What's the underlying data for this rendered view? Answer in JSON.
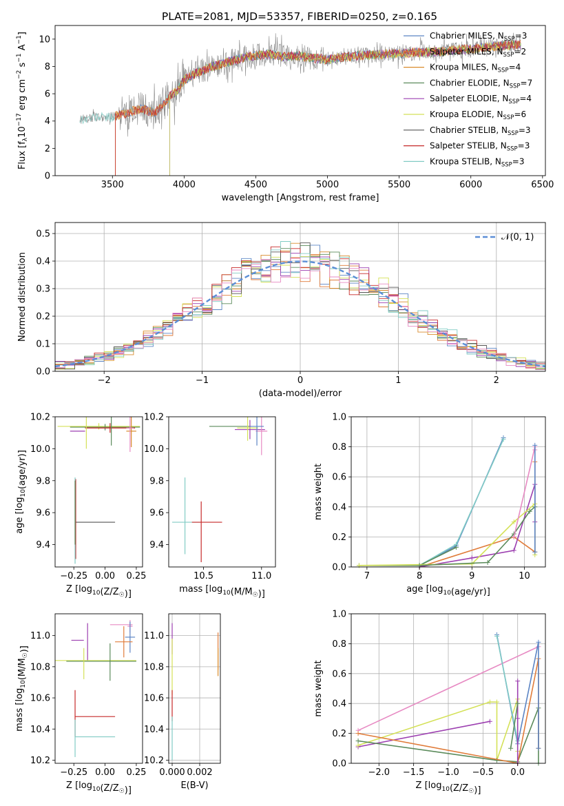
{
  "figure_title": "PLATE=2081, MJD=53357, FIBERID=0250, z=0.165",
  "colors": {
    "chabrier_miles": "#5b84c4",
    "salpeter_miles": "#e07b39",
    "kroupa_miles": "#d98b2b",
    "chabrier_elodie": "#5a8a5a",
    "salpeter_elodie": "#9c3fb0",
    "kroupa_elodie": "#d4e157",
    "chabrier_stelib": "#555555",
    "salpeter_stelib": "#c62828",
    "kroupa_stelib": "#80cbc4",
    "data": "#888888",
    "pink": "#e78ac3",
    "gaussian": "#5b8ed6"
  },
  "chart_data": [
    {
      "id": "spectrum",
      "type": "line",
      "title": "PLATE=2081, MJD=53357, FIBERID=0250, z=0.165",
      "xlabel": "wavelength [Angstrom, rest frame]",
      "ylabel_parts": [
        "Flux [f",
        "λ",
        "10",
        "−17",
        " erg cm",
        "−2",
        " s",
        "−1",
        " A",
        "−1",
        "]"
      ],
      "xlim": [
        3100,
        6520
      ],
      "ylim": [
        0,
        11
      ],
      "xticks": [
        3500,
        4000,
        4500,
        5000,
        5500,
        6000,
        6500
      ],
      "yticks": [
        0,
        2,
        4,
        6,
        8,
        10
      ],
      "continuum": {
        "x": [
          3270,
          3400,
          3500,
          3600,
          3700,
          3800,
          3900,
          3950,
          4000,
          4100,
          4200,
          4300,
          4400,
          4500,
          4600,
          4700,
          4800,
          4900,
          5000,
          5200,
          5400,
          5600,
          5800,
          6000,
          6200,
          6350
        ],
        "y": [
          4.1,
          4.3,
          4.3,
          4.6,
          4.9,
          4.6,
          5.8,
          6.2,
          7.0,
          7.6,
          8.0,
          8.3,
          8.6,
          8.8,
          8.9,
          8.7,
          8.8,
          8.6,
          8.5,
          8.8,
          8.9,
          9.0,
          9.1,
          9.3,
          9.5,
          9.6
        ]
      },
      "legend": [
        {
          "label": "Chabrier MILES, N",
          "sub": "SSP",
          "n": "=3",
          "color_key": "chabrier_miles"
        },
        {
          "label": "Salpeter MILES, N",
          "sub": "SSP",
          "n": "=2",
          "color_key": "salpeter_miles"
        },
        {
          "label": "Kroupa MILES, N",
          "sub": "SSP",
          "n": "=4",
          "color_key": "kroupa_miles"
        },
        {
          "label": "Chabrier ELODIE, N",
          "sub": "SSP",
          "n": "=7",
          "color_key": "chabrier_elodie"
        },
        {
          "label": "Salpeter ELODIE, N",
          "sub": "SSP",
          "n": "=4",
          "color_key": "salpeter_elodie"
        },
        {
          "label": "Kroupa ELODIE, N",
          "sub": "SSP",
          "n": "=6",
          "color_key": "kroupa_elodie"
        },
        {
          "label": "Chabrier STELIB, N",
          "sub": "SSP",
          "n": "=3",
          "color_key": "chabrier_stelib"
        },
        {
          "label": "Salpeter STELIB, N",
          "sub": "SSP",
          "n": "=3",
          "color_key": "salpeter_stelib"
        },
        {
          "label": "Kroupa STELIB, N",
          "sub": "SSP",
          "n": "=3",
          "color_key": "kroupa_stelib"
        }
      ]
    },
    {
      "id": "residuals",
      "type": "histogram",
      "xlabel": "(data-model)/error",
      "ylabel": "Normed distribution",
      "xlim": [
        -2.5,
        2.5
      ],
      "ylim": [
        0,
        0.54
      ],
      "xticks": [
        -2,
        -1,
        0,
        1,
        2
      ],
      "yticks": [
        0.0,
        0.1,
        0.2,
        0.3,
        0.4,
        0.5
      ],
      "grid": true,
      "bin_width": 0.1,
      "legend": {
        "label": "𝒩(0, 1)",
        "position": "top-right"
      }
    },
    {
      "id": "age_vs_Z",
      "type": "scatter",
      "xlabel": "Z [log10(Z/Z☉)]",
      "ylabel": "age  [log10(age/yr)]",
      "xlim": [
        -0.4,
        0.3
      ],
      "ylim": [
        9.26,
        10.2
      ],
      "xticks": [
        -0.25,
        0.0,
        0.25
      ],
      "xtick_labels": [
        "−0.25",
        "0.00",
        "0.25"
      ],
      "yticks": [
        9.4,
        9.6,
        9.8,
        10.0,
        10.2
      ],
      "points": [
        {
          "x": -0.05,
          "y": 10.14,
          "xerr": 0.33,
          "yerr": 0.02,
          "color_key": "kroupa_elodie"
        },
        {
          "x": 0.0,
          "y": 10.135,
          "xerr": 0.28,
          "yerr": 0.02,
          "color_key": "chabrier_elodie"
        },
        {
          "x": 0.04,
          "y": 10.13,
          "xerr": 0.2,
          "yerr": 0.03,
          "color_key": "salpeter_stelib"
        },
        {
          "x": -0.22,
          "y": 10.11,
          "xerr": 0.06,
          "yerr": 0.0,
          "color_key": "salpeter_elodie"
        },
        {
          "x": 0.21,
          "y": 10.11,
          "xerr": 0.04,
          "yerr": 0.1,
          "color_key": "kroupa_miles"
        },
        {
          "x": 0.2,
          "y": 10.13,
          "xerr": 0.03,
          "yerr": 0.15,
          "color_key": "pink"
        },
        {
          "x": -0.15,
          "y": 10.1,
          "xerr": 0.0,
          "yerr": 0.1,
          "color_key": "kroupa_elodie"
        },
        {
          "x": 0.05,
          "y": 10.12,
          "xerr": 0.0,
          "yerr": 0.1,
          "color_key": "chabrier_elodie"
        },
        {
          "x": -0.08,
          "y": 9.54,
          "xerr": 0.16,
          "yerr": 0.0,
          "color_key": "chabrier_stelib"
        },
        {
          "x": -0.235,
          "y": 9.56,
          "xerr": 0.0,
          "yerr": 0.25,
          "color_key": "salpeter_stelib"
        },
        {
          "x": -0.24,
          "y": 9.55,
          "xerr": 0.0,
          "yerr": 0.27,
          "color_key": "kroupa_stelib"
        },
        {
          "x": -0.24,
          "y": 9.6,
          "xerr": 0.0,
          "yerr": 0.2,
          "color_key": "chabrier_elodie"
        }
      ]
    },
    {
      "id": "age_vs_mass",
      "type": "scatter",
      "xlabel": "mass [log10(M/M☉)]",
      "xlim": [
        10.2,
        11.12
      ],
      "ylim": [
        9.26,
        10.2
      ],
      "xticks": [
        10.5,
        11.0
      ],
      "xtick_labels": [
        "10.5",
        "11.0"
      ],
      "yticks": [
        9.4,
        9.6,
        9.8,
        10.0,
        10.2
      ],
      "points": [
        {
          "x": 10.73,
          "y": 10.14,
          "xerr": 0.18,
          "yerr": 0.0,
          "color_key": "chabrier_elodie"
        },
        {
          "x": 10.9,
          "y": 10.12,
          "xerr": 0.13,
          "yerr": 0.06,
          "color_key": "salpeter_elodie"
        },
        {
          "x": 11.0,
          "y": 10.11,
          "xerr": 0.05,
          "yerr": 0.15,
          "color_key": "pink"
        },
        {
          "x": 10.88,
          "y": 10.13,
          "xerr": 0.09,
          "yerr": 0.08,
          "color_key": "kroupa_elodie"
        },
        {
          "x": 10.96,
          "y": 10.14,
          "xerr": 0.06,
          "yerr": 0.12,
          "color_key": "chabrier_miles"
        },
        {
          "x": 10.35,
          "y": 9.54,
          "xerr": 0.12,
          "yerr": 0.0,
          "color_key": "kroupa_stelib"
        },
        {
          "x": 10.53,
          "y": 9.54,
          "xerr": 0.13,
          "yerr": 0.0,
          "color_key": "salpeter_stelib"
        },
        {
          "x": 10.48,
          "y": 9.48,
          "xerr": 0.0,
          "yerr": 0.19,
          "color_key": "salpeter_stelib"
        },
        {
          "x": 10.34,
          "y": 9.58,
          "xerr": 0.0,
          "yerr": 0.24,
          "color_key": "kroupa_stelib"
        }
      ]
    },
    {
      "id": "mass_weight_vs_age",
      "type": "line",
      "xlabel": "age  [log10(age/yr)]",
      "ylabel": "mass weight",
      "xlim": [
        6.7,
        10.4
      ],
      "ylim": [
        0,
        1
      ],
      "xticks": [
        7,
        8,
        9,
        10
      ],
      "yticks": [
        0.0,
        0.2,
        0.4,
        0.6,
        0.8,
        1.0
      ],
      "grid": true,
      "series": [
        {
          "color_key": "chabrier_miles",
          "x": [
            8.0,
            8.7,
            9.6
          ],
          "y": [
            0.01,
            0.14,
            0.86
          ]
        },
        {
          "color_key": "kroupa_stelib",
          "x": [
            8.0,
            8.7,
            9.6
          ],
          "y": [
            0.01,
            0.15,
            0.85
          ]
        },
        {
          "color_key": "chabrier_elodie",
          "x": [
            6.85,
            8.0,
            8.7
          ],
          "y": [
            0.01,
            0.01,
            0.13
          ]
        },
        {
          "color_key": "salpeter_miles",
          "x": [
            8.0,
            9.8,
            10.2,
            10.2
          ],
          "y": [
            0.0,
            0.2,
            0.1,
            0.7
          ]
        },
        {
          "color_key": "salpeter_elodie",
          "x": [
            8.0,
            9.0,
            9.8,
            10.2,
            10.2
          ],
          "y": [
            0.0,
            0.06,
            0.11,
            0.55,
            0.3
          ]
        },
        {
          "color_key": "kroupa_elodie",
          "x": [
            6.85,
            9.0,
            9.8,
            10.2,
            10.2
          ],
          "y": [
            0.01,
            0.02,
            0.3,
            0.42,
            0.08
          ]
        },
        {
          "color_key": "chabrier_elodie",
          "x": [
            8.0,
            9.3,
            9.8,
            10.1,
            10.2
          ],
          "y": [
            0.01,
            0.03,
            0.22,
            0.37,
            0.4
          ]
        },
        {
          "color_key": "pink",
          "x": [
            9.8,
            10.2,
            10.2
          ],
          "y": [
            0.2,
            0.8,
            0.78
          ]
        },
        {
          "color_key": "chabrier_miles",
          "x": [
            10.2,
            10.2
          ],
          "y": [
            0.81,
            0.1
          ]
        }
      ]
    },
    {
      "id": "mass_vs_Z",
      "type": "scatter",
      "xlabel": "Z [log10(Z/Z☉)]",
      "ylabel": "mass [log10(M/M☉)]",
      "xlim": [
        -0.4,
        0.3
      ],
      "ylim": [
        10.18,
        11.14
      ],
      "xticks": [
        -0.25,
        0.0,
        0.25
      ],
      "xtick_labels": [
        "−0.25",
        "0.00",
        "0.25"
      ],
      "yticks": [
        10.2,
        10.4,
        10.6,
        10.8,
        11.0
      ],
      "points": [
        {
          "x": 0.13,
          "y": 11.07,
          "xerr": 0.09,
          "yerr": 0.0,
          "color_key": "pink"
        },
        {
          "x": 0.2,
          "y": 11.06,
          "xerr": 0.02,
          "yerr": 0.04,
          "color_key": "pink"
        },
        {
          "x": 0.2,
          "y": 10.99,
          "xerr": 0.04,
          "yerr": 0.1,
          "color_key": "chabrier_miles"
        },
        {
          "x": -0.22,
          "y": 10.97,
          "xerr": 0.05,
          "yerr": 0.0,
          "color_key": "salpeter_elodie"
        },
        {
          "x": -0.14,
          "y": 10.96,
          "xerr": 0.0,
          "yerr": 0.12,
          "color_key": "salpeter_elodie"
        },
        {
          "x": 0.15,
          "y": 10.96,
          "xerr": 0.07,
          "yerr": 0.1,
          "color_key": "salpeter_miles"
        },
        {
          "x": -0.1,
          "y": 10.84,
          "xerr": 0.35,
          "yerr": 0.0,
          "color_key": "kroupa_elodie"
        },
        {
          "x": -0.03,
          "y": 10.835,
          "xerr": 0.28,
          "yerr": 0.0,
          "color_key": "chabrier_elodie"
        },
        {
          "x": -0.17,
          "y": 10.82,
          "xerr": 0.0,
          "yerr": 0.1,
          "color_key": "kroupa_elodie"
        },
        {
          "x": 0.04,
          "y": 10.83,
          "xerr": 0.0,
          "yerr": 0.12,
          "color_key": "chabrier_elodie"
        },
        {
          "x": -0.08,
          "y": 10.48,
          "xerr": 0.16,
          "yerr": 0.0,
          "color_key": "salpeter_stelib"
        },
        {
          "x": -0.24,
          "y": 10.5,
          "xerr": 0.0,
          "yerr": 0.15,
          "color_key": "salpeter_stelib"
        },
        {
          "x": -0.08,
          "y": 10.35,
          "xerr": 0.16,
          "yerr": 0.0,
          "color_key": "kroupa_stelib"
        },
        {
          "x": -0.24,
          "y": 10.34,
          "xerr": 0.0,
          "yerr": 0.12,
          "color_key": "kroupa_stelib"
        }
      ]
    },
    {
      "id": "mass_vs_EBV",
      "type": "scatter",
      "xlabel": "E(B-V)",
      "xlim": [
        -0.00025,
        0.0035
      ],
      "ylim": [
        10.18,
        11.14
      ],
      "xticks": [
        0.0,
        0.002
      ],
      "xtick_labels": [
        "0.000",
        "0.002"
      ],
      "yticks": [
        10.2,
        10.4,
        10.6,
        10.8,
        11.0
      ],
      "grid": true,
      "points": [
        {
          "x": 0.0,
          "y": 10.98,
          "xerr": 0.0,
          "yerr": 0.1,
          "color_key": "salpeter_elodie"
        },
        {
          "x": 0.0,
          "y": 10.8,
          "xerr": 0.0,
          "yerr": 0.18,
          "color_key": "kroupa_elodie"
        },
        {
          "x": 0.0,
          "y": 10.55,
          "xerr": 0.0,
          "yerr": 0.1,
          "color_key": "salpeter_stelib"
        },
        {
          "x": 0.0,
          "y": 10.34,
          "xerr": 0.0,
          "yerr": 0.14,
          "color_key": "kroupa_stelib"
        },
        {
          "x": 0.00333,
          "y": 10.9,
          "xerr": 0.0,
          "yerr": 0.12,
          "color_key": "salpeter_miles"
        },
        {
          "x": 0.00333,
          "y": 10.83,
          "xerr": 0.0,
          "yerr": 0.09,
          "color_key": "kroupa_miles"
        }
      ]
    },
    {
      "id": "mass_weight_vs_Z",
      "type": "line",
      "xlabel": "Z [log10(Z/Z☉)]",
      "ylabel": "mass weight",
      "xlim": [
        -2.4,
        0.4
      ],
      "ylim": [
        0,
        1
      ],
      "xticks": [
        -2.0,
        -1.5,
        -1.0,
        -0.5,
        0.0
      ],
      "xtick_labels": [
        "−2.0",
        "−1.5",
        "−1.0",
        "−0.5",
        "0.0"
      ],
      "yticks": [
        0.0,
        0.2,
        0.4,
        0.6,
        0.8,
        1.0
      ],
      "grid": true,
      "series": [
        {
          "color_key": "pink",
          "x": [
            -2.3,
            0.3
          ],
          "y": [
            0.22,
            0.78
          ]
        },
        {
          "color_key": "salpeter_elodie",
          "x": [
            -2.3,
            -0.4
          ],
          "y": [
            0.11,
            0.28
          ]
        },
        {
          "color_key": "kroupa_elodie",
          "x": [
            -2.3,
            -0.4,
            -0.3,
            -0.3,
            0.0,
            0.0
          ],
          "y": [
            0.12,
            0.41,
            0.41,
            0.02,
            0.43,
            0.08
          ]
        },
        {
          "color_key": "chabrier_elodie",
          "x": [
            -2.3,
            -0.3,
            0.0,
            0.3,
            0.3
          ],
          "y": [
            0.15,
            0.02,
            0.01,
            0.37,
            0.0
          ]
        },
        {
          "color_key": "salpeter_miles",
          "x": [
            -2.3,
            0.0,
            0.3,
            0.3
          ],
          "y": [
            0.2,
            0.0,
            0.7,
            0.1
          ]
        },
        {
          "color_key": "chabrier_miles",
          "x": [
            -0.3,
            0.0,
            0.3,
            0.3
          ],
          "y": [
            0.86,
            0.13,
            0.81,
            0.1
          ]
        },
        {
          "color_key": "kroupa_stelib",
          "x": [
            -0.3,
            0.0
          ],
          "y": [
            0.85,
            0.15
          ]
        },
        {
          "color_key": "salpeter_elodie",
          "x": [
            0.0,
            0.0,
            0.0
          ],
          "y": [
            0.55,
            0.3,
            0.0
          ]
        },
        {
          "color_key": "chabrier_elodie",
          "x": [
            -0.1,
            0.0
          ],
          "y": [
            0.1,
            0.4
          ]
        }
      ]
    }
  ]
}
